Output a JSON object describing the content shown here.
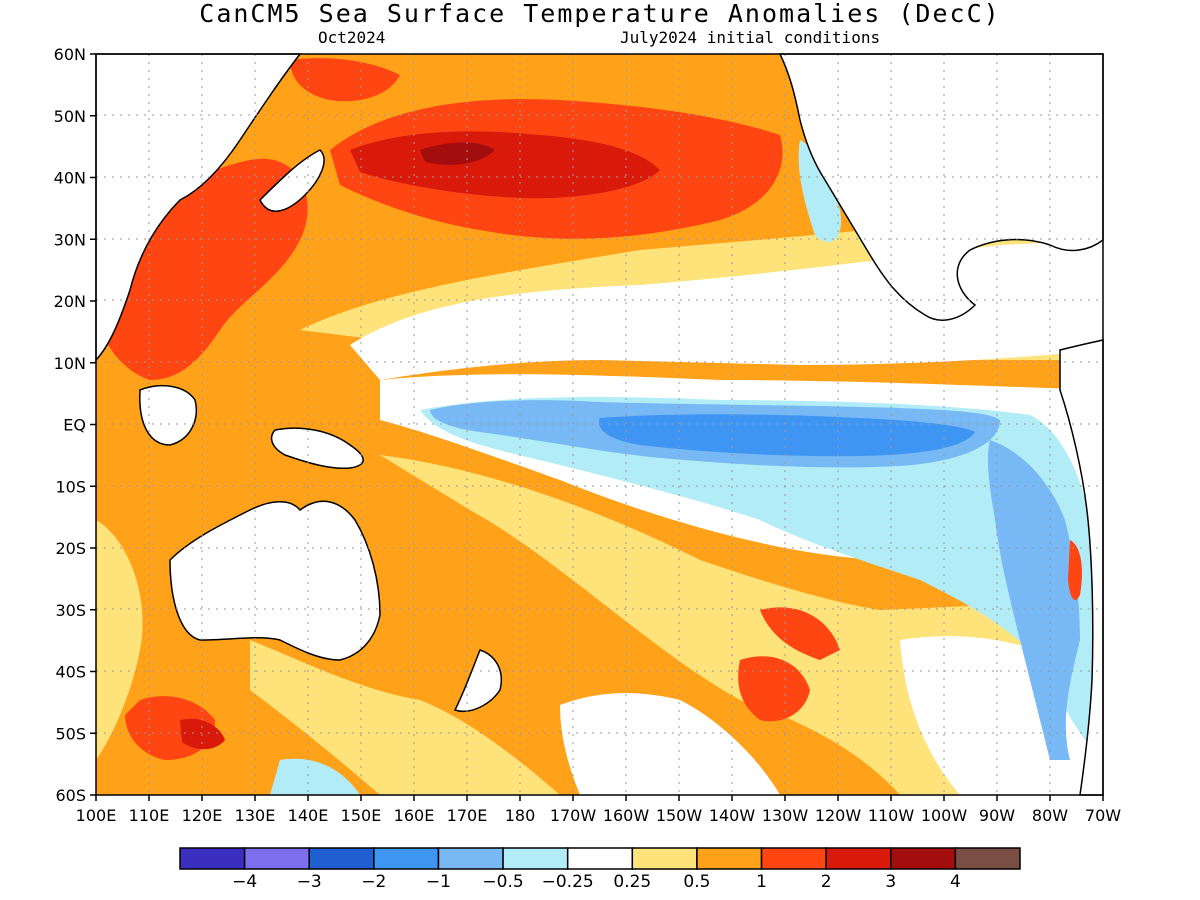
{
  "title": "CanCM5 Sea Surface Temperature Anomalies (DecC)",
  "subtitle_left": "Oct2024",
  "subtitle_right": "July2024 initial conditions",
  "map": {
    "lon_range": [
      "100E",
      "70W"
    ],
    "lat_range": [
      "60S",
      "60N"
    ],
    "grid": "dotted",
    "lat_ticks": [
      "60N",
      "50N",
      "40N",
      "30N",
      "20N",
      "10N",
      "EQ",
      "10S",
      "20S",
      "30S",
      "40S",
      "50S",
      "60S"
    ],
    "lon_ticks": [
      "100E",
      "110E",
      "120E",
      "130E",
      "140E",
      "150E",
      "160E",
      "170E",
      "180",
      "170W",
      "160W",
      "150W",
      "140W",
      "130W",
      "120W",
      "110W",
      "100W",
      "90W",
      "80W",
      "70W"
    ]
  },
  "colorbar": {
    "colors": [
      "#3a2fbf",
      "#7b6ff0",
      "#1f5fd1",
      "#3f95f2",
      "#78b8f5",
      "#b2edf7",
      "#ffffff",
      "#fee27a",
      "#ffa21a",
      "#ff4512",
      "#d91a0b",
      "#a30d0d",
      "#7a4e44"
    ],
    "labels": [
      "−4",
      "−3",
      "−2",
      "−1",
      "−0.5",
      "−0.25",
      "0.25",
      "0.5",
      "1",
      "2",
      "3",
      "4"
    ]
  },
  "shading_palette": {
    "strong_cold": "#3f95f2",
    "cold": "#78b8f5",
    "cool": "#b2edf7",
    "neutral": "#ffffff",
    "warm": "#fee27a",
    "warmer": "#ffa21a",
    "hot": "#ff4512",
    "hotter": "#d91a0b",
    "hottest": "#a30d0d",
    "land": "#ffffff",
    "coast": "#000000",
    "grid": "#9a9a9a"
  }
}
